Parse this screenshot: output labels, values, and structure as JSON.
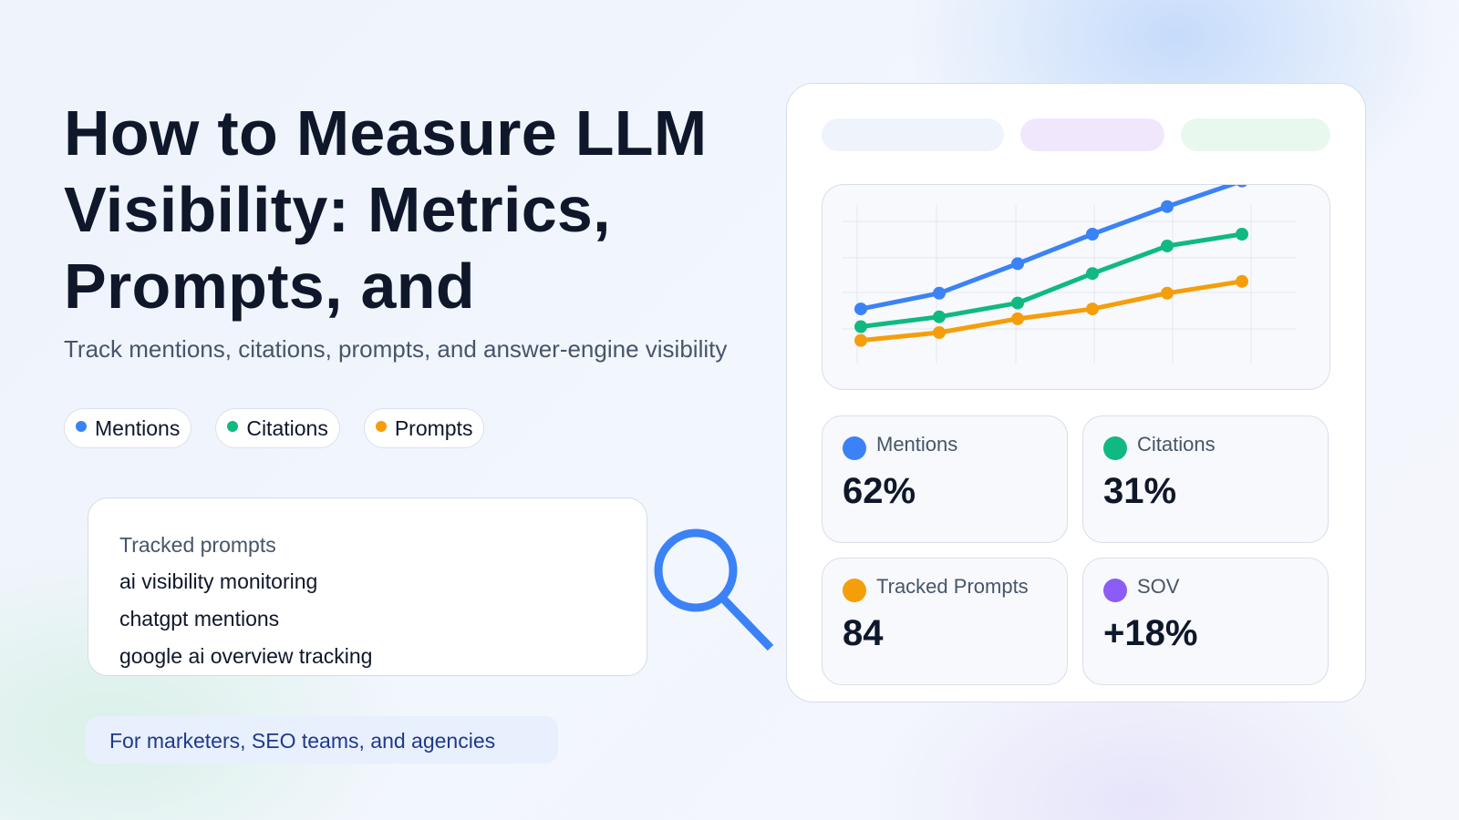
{
  "headline": "How to Measure LLM Visibility: Metrics, Prompts, and",
  "subtitle": "Track mentions, citations, prompts, and answer-engine visibility",
  "legend": [
    {
      "label": "Mentions",
      "color": "#3b82f6"
    },
    {
      "label": "Citations",
      "color": "#10b981"
    },
    {
      "label": "Prompts",
      "color": "#f59e0b"
    }
  ],
  "prompts_card": {
    "title": "Tracked prompts",
    "items": [
      "ai visibility monitoring",
      "chatgpt mentions",
      "google ai overview tracking"
    ]
  },
  "audience": "For marketers, SEO teams, and agencies",
  "dashboard": {
    "skeleton_colors": [
      "#eef3fc",
      "#f1e7fd",
      "#e8f8ef"
    ],
    "stats": [
      {
        "label": "Mentions",
        "value": "62%",
        "color": "#3b82f6"
      },
      {
        "label": "Citations",
        "value": "31%",
        "color": "#10b981"
      },
      {
        "label": "Tracked Prompts",
        "value": "84",
        "color": "#f59e0b"
      },
      {
        "label": "SOV",
        "value": "+18%",
        "color": "#8b5cf6"
      }
    ]
  },
  "icons": {
    "magnifier": "search-icon"
  },
  "chart_data": {
    "type": "line",
    "x": [
      1,
      2,
      3,
      4,
      5,
      6
    ],
    "ylim": [
      0,
      100
    ],
    "grid": true,
    "series": [
      {
        "values": [
          37,
          45,
          60,
          75,
          89,
          102
        ],
        "color": "#3b82f6"
      },
      {
        "values": [
          28,
          33,
          40,
          55,
          69,
          75
        ],
        "color": "#10b981"
      },
      {
        "values": [
          21,
          25,
          32,
          37,
          45,
          51
        ],
        "color": "#f59e0b"
      }
    ]
  }
}
